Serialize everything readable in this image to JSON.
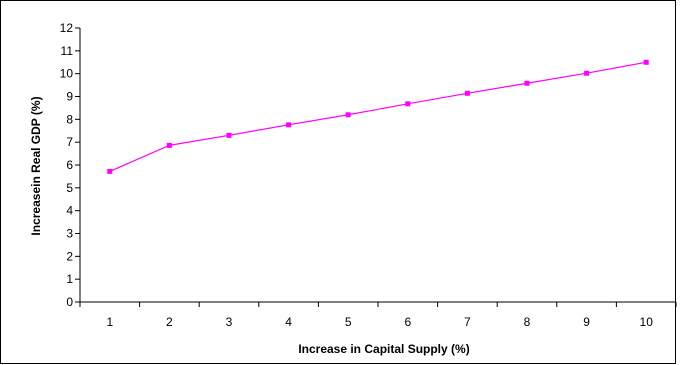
{
  "chart_data": {
    "type": "line",
    "title": "",
    "xlabel": "Increase in Capital Supply (%)",
    "ylabel": "Increasein Real GDP (%)",
    "categories": [
      "1",
      "2",
      "3",
      "4",
      "5",
      "6",
      "7",
      "8",
      "9",
      "10"
    ],
    "x": [
      1,
      2,
      3,
      4,
      5,
      6,
      7,
      8,
      9,
      10
    ],
    "series": [
      {
        "values": [
          5.72,
          6.86,
          7.3,
          7.76,
          8.2,
          8.68,
          9.14,
          9.58,
          10.02,
          10.5
        ],
        "color": "#ff00ff",
        "marker": "square"
      }
    ],
    "ylim": [
      0,
      12
    ],
    "yticks": [
      "0",
      "1",
      "2",
      "3",
      "4",
      "5",
      "6",
      "7",
      "8",
      "9",
      "10",
      "11",
      "12"
    ],
    "grid": false,
    "legend": "none"
  }
}
